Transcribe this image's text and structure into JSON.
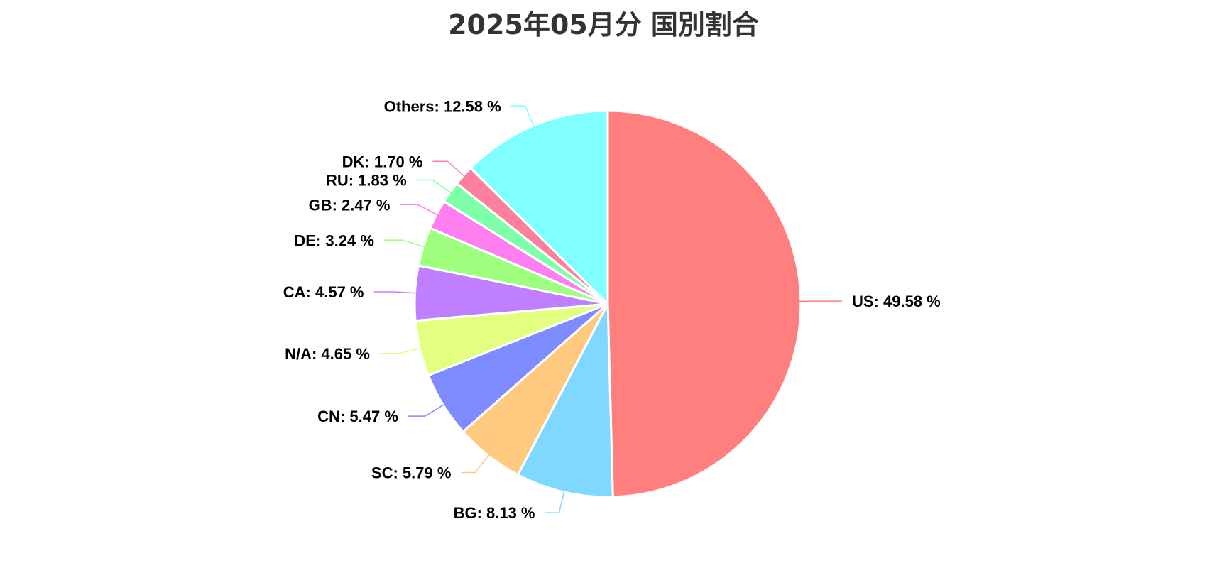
{
  "chart_data": {
    "type": "pie",
    "title": "2025年05月分 国別割合",
    "slices": [
      {
        "label": "US",
        "value": 49.58,
        "display": "US: 49.58 %",
        "color": "#ff7f7f"
      },
      {
        "label": "BG",
        "value": 8.13,
        "display": "BG: 8.13 %",
        "color": "#7fd8ff"
      },
      {
        "label": "SC",
        "value": 5.79,
        "display": "SC: 5.79 %",
        "color": "#ffca7f"
      },
      {
        "label": "CN",
        "value": 5.47,
        "display": "CN: 5.47 %",
        "color": "#7f8cff"
      },
      {
        "label": "N/A",
        "value": 4.65,
        "display": "N/A: 4.65 %",
        "color": "#e4ff7f"
      },
      {
        "label": "CA",
        "value": 4.57,
        "display": "CA: 4.57 %",
        "color": "#bf7fff"
      },
      {
        "label": "DE",
        "value": 3.24,
        "display": "DE: 3.24 %",
        "color": "#9fff7f"
      },
      {
        "label": "GB",
        "value": 2.47,
        "display": "GB: 2.47 %",
        "color": "#ff7ff0"
      },
      {
        "label": "RU",
        "value": 1.83,
        "display": "RU: 1.83 %",
        "color": "#7fffaa"
      },
      {
        "label": "DK",
        "value": 1.7,
        "display": "DK: 1.70 %",
        "color": "#ff7f9f"
      },
      {
        "label": "Others",
        "value": 12.58,
        "display": "Others: 12.58 %",
        "color": "#7fffff"
      }
    ]
  }
}
